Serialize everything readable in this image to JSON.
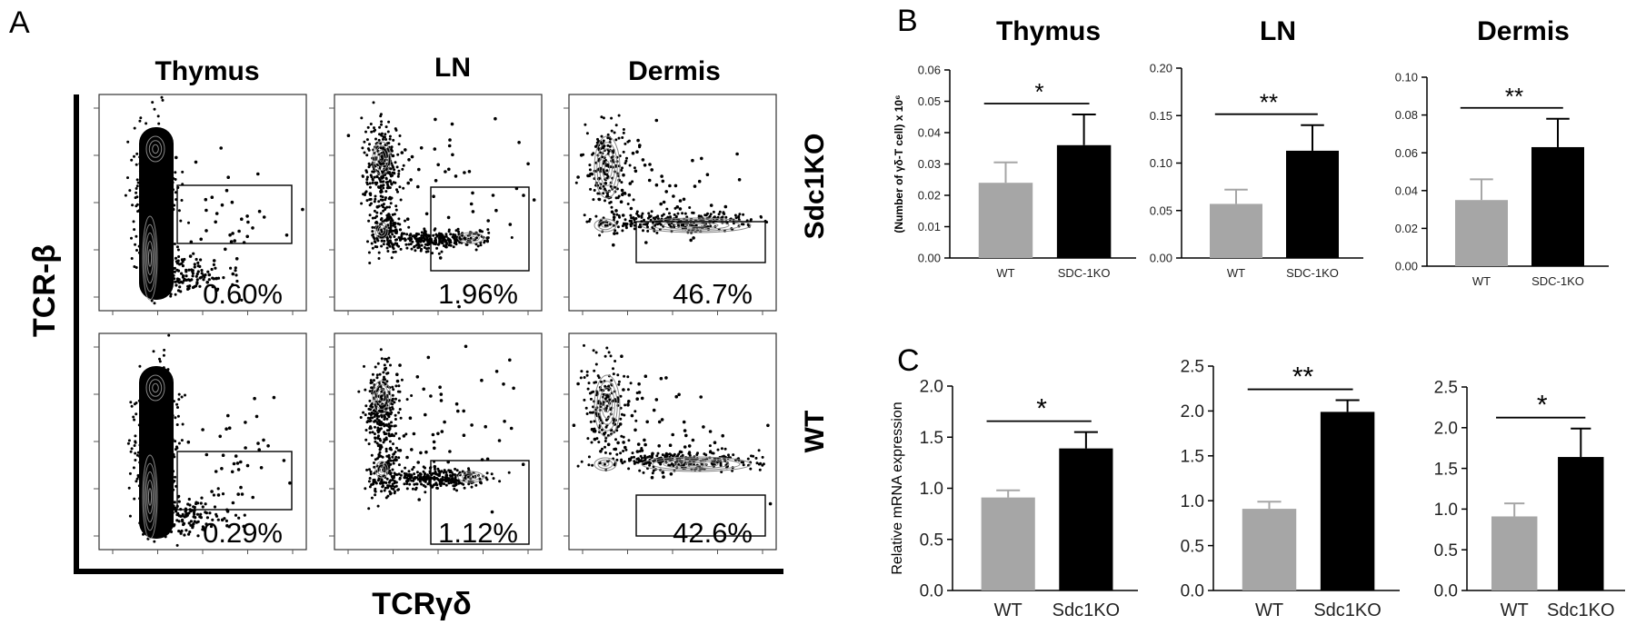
{
  "panels": {
    "a": "A",
    "b": "B",
    "c": "C"
  },
  "flow": {
    "tissues": [
      "Thymus",
      "LN",
      "Dermis"
    ],
    "row_labels": [
      "Sdc1KO",
      "WT"
    ],
    "y_axis_label": "TCR-β",
    "x_axis_label": "TCRγδ",
    "percentages": [
      [
        "0.60%",
        "1.96%",
        "46.7%"
      ],
      [
        "0.29%",
        "1.12%",
        "42.6%"
      ]
    ]
  },
  "chart_data": [
    {
      "type": "bar",
      "panel": "B",
      "title": "Thymus",
      "ylabel": "(Number of γδ-T cell) x 10⁶",
      "categories": [
        "WT",
        "SDC-1KO"
      ],
      "values": [
        0.024,
        0.036
      ],
      "errors": [
        0.0065,
        0.0098
      ],
      "ylim": [
        0,
        0.06
      ],
      "yticks": [
        "0.00",
        "0.01",
        "0.02",
        "0.03",
        "0.04",
        "0.05",
        "0.06"
      ],
      "significance": "*",
      "colors": [
        "#a6a6a6",
        "#000000"
      ]
    },
    {
      "type": "bar",
      "panel": "B",
      "title": "LN",
      "ylabel": "",
      "categories": [
        "WT",
        "SDC-1KO"
      ],
      "values": [
        0.057,
        0.113
      ],
      "errors": [
        0.015,
        0.027
      ],
      "ylim": [
        0,
        0.2
      ],
      "yticks": [
        "0.00",
        "0.05",
        "0.10",
        "0.15",
        "0.20"
      ],
      "significance": "**",
      "colors": [
        "#a6a6a6",
        "#000000"
      ]
    },
    {
      "type": "bar",
      "panel": "B",
      "title": "Dermis",
      "ylabel": "",
      "categories": [
        "WT",
        "SDC-1KO"
      ],
      "values": [
        0.035,
        0.063
      ],
      "errors": [
        0.011,
        0.015
      ],
      "ylim": [
        0,
        0.1
      ],
      "yticks": [
        "0.00",
        "0.02",
        "0.04",
        "0.06",
        "0.08",
        "0.10"
      ],
      "significance": "**",
      "colors": [
        "#a6a6a6",
        "#000000"
      ]
    },
    {
      "type": "bar",
      "panel": "C",
      "title": "",
      "ylabel": "Relative mRNA expression",
      "categories": [
        "WT",
        "Sdc1KO"
      ],
      "values": [
        0.91,
        1.39
      ],
      "errors": [
        0.07,
        0.16
      ],
      "ylim": [
        0,
        2.0
      ],
      "yticks": [
        "0.0",
        "0.5",
        "1.0",
        "1.5",
        "2.0"
      ],
      "significance": "*",
      "colors": [
        "#a6a6a6",
        "#000000"
      ]
    },
    {
      "type": "bar",
      "panel": "C",
      "title": "",
      "ylabel": "",
      "categories": [
        "WT",
        "Sdc1KO"
      ],
      "values": [
        0.91,
        1.99
      ],
      "errors": [
        0.08,
        0.13
      ],
      "ylim": [
        0,
        2.5
      ],
      "yticks": [
        "0.0",
        "0.5",
        "1.0",
        "1.5",
        "2.0",
        "2.5"
      ],
      "significance": "**",
      "colors": [
        "#a6a6a6",
        "#000000"
      ]
    },
    {
      "type": "bar",
      "panel": "C",
      "title": "",
      "ylabel": "",
      "categories": [
        "WT",
        "Sdc1KO"
      ],
      "values": [
        0.91,
        1.64
      ],
      "errors": [
        0.16,
        0.35
      ],
      "ylim": [
        0,
        2.5
      ],
      "yticks": [
        "0.0",
        "0.5",
        "1.0",
        "1.5",
        "2.0",
        "2.5"
      ],
      "significance": "*",
      "colors": [
        "#a6a6a6",
        "#000000"
      ]
    }
  ]
}
